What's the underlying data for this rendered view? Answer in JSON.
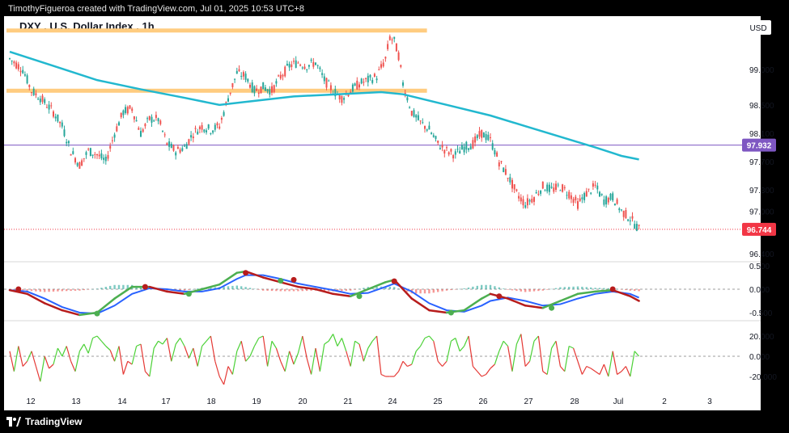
{
  "header": {
    "credit": "TimothyFigueroa created with TradingView.com, Jul 01, 2025 10:53 UTC+8"
  },
  "footer": {
    "brand": "TradingView"
  },
  "colors": {
    "up": "#26a69a",
    "down": "#ef5350",
    "ma": "#22b8cf",
    "resistance": "#ffcc80",
    "level_line": "#7e57c2",
    "last_price_box": "#f23645",
    "level_box": "#7e57c2",
    "osc_fast_up": "#4caf50",
    "osc_fast_down": "#b71c1c",
    "osc_slow": "#2962ff",
    "hist_up": "#26a69a",
    "hist_down": "#ef5350",
    "bottom_up": "#4cd137",
    "bottom_down": "#e53935"
  },
  "chart_data": [
    {
      "type": "candlestick",
      "title": "DXY . U.S. Dollar Index . 1h",
      "currency": "USD",
      "y_ticks": [
        99.0,
        98.5,
        98.1,
        97.7,
        97.3,
        97.0,
        96.4
      ],
      "y_tick_labels": [
        "99.000",
        "98.500",
        "98.100",
        "97.700",
        "97.300",
        "97.000",
        "96.400"
      ],
      "x_tick_labels": [
        "12",
        "13",
        "14",
        "17",
        "18",
        "19",
        "20",
        "21",
        "24",
        "25",
        "26",
        "27",
        "28",
        "Jul",
        "2",
        "3"
      ],
      "horizontal_level": {
        "value": 97.932,
        "label": "97.932"
      },
      "last_price": {
        "value": 96.744,
        "label": "96.744"
      },
      "resistance_zones": [
        {
          "price": 99.55,
          "from_day": "12",
          "to_day": "24"
        },
        {
          "price": 98.7,
          "from_day": "12",
          "to_day": "24"
        }
      ],
      "close_path": [
        [
          0,
          99.15
        ],
        [
          3,
          99.0
        ],
        [
          5,
          98.7
        ],
        [
          7,
          98.6
        ],
        [
          10,
          98.4
        ],
        [
          12,
          98.2
        ],
        [
          14,
          97.85
        ],
        [
          16,
          97.65
        ],
        [
          18,
          97.85
        ],
        [
          20,
          97.8
        ],
        [
          22,
          97.7
        ],
        [
          24,
          98.1
        ],
        [
          26,
          98.4
        ],
        [
          28,
          98.45
        ],
        [
          30,
          98.1
        ],
        [
          32,
          98.3
        ],
        [
          34,
          98.3
        ],
        [
          36,
          97.95
        ],
        [
          38,
          97.85
        ],
        [
          40,
          97.9
        ],
        [
          42,
          98.1
        ],
        [
          44,
          98.2
        ],
        [
          46,
          98.15
        ],
        [
          48,
          98.2
        ],
        [
          50,
          98.6
        ],
        [
          52,
          98.95
        ],
        [
          54,
          98.9
        ],
        [
          56,
          98.7
        ],
        [
          58,
          98.75
        ],
        [
          60,
          98.7
        ],
        [
          62,
          98.9
        ],
        [
          64,
          99.05
        ],
        [
          66,
          99.1
        ],
        [
          68,
          99.05
        ],
        [
          70,
          99.1
        ],
        [
          72,
          98.85
        ],
        [
          74,
          98.7
        ],
        [
          76,
          98.6
        ],
        [
          78,
          98.7
        ],
        [
          80,
          98.8
        ],
        [
          82,
          98.85
        ],
        [
          84,
          98.9
        ],
        [
          86,
          99.15
        ],
        [
          87,
          99.45
        ],
        [
          88,
          99.4
        ],
        [
          89,
          99.2
        ],
        [
          90,
          98.8
        ],
        [
          92,
          98.4
        ],
        [
          94,
          98.25
        ],
        [
          96,
          98.15
        ],
        [
          98,
          97.95
        ],
        [
          100,
          97.85
        ],
        [
          102,
          97.8
        ],
        [
          104,
          97.9
        ],
        [
          106,
          97.95
        ],
        [
          108,
          98.1
        ],
        [
          110,
          98.0
        ],
        [
          112,
          97.7
        ],
        [
          114,
          97.5
        ],
        [
          116,
          97.25
        ],
        [
          118,
          97.1
        ],
        [
          120,
          97.2
        ],
        [
          122,
          97.35
        ],
        [
          124,
          97.3
        ],
        [
          126,
          97.35
        ],
        [
          128,
          97.25
        ],
        [
          130,
          97.1
        ],
        [
          132,
          97.25
        ],
        [
          134,
          97.35
        ],
        [
          136,
          97.15
        ],
        [
          138,
          97.2
        ],
        [
          140,
          97.0
        ],
        [
          142,
          96.9
        ],
        [
          144,
          96.744
        ]
      ],
      "ma_line": [
        [
          0,
          99.25
        ],
        [
          10,
          99.05
        ],
        [
          20,
          98.85
        ],
        [
          30,
          98.72
        ],
        [
          40,
          98.6
        ],
        [
          48,
          98.5
        ],
        [
          55,
          98.55
        ],
        [
          65,
          98.62
        ],
        [
          75,
          98.65
        ],
        [
          85,
          98.68
        ],
        [
          90,
          98.65
        ],
        [
          100,
          98.5
        ],
        [
          110,
          98.35
        ],
        [
          118,
          98.2
        ],
        [
          126,
          98.05
        ],
        [
          134,
          97.9
        ],
        [
          140,
          97.78
        ],
        [
          144,
          97.73
        ]
      ]
    },
    {
      "type": "line",
      "name": "oscillator_middle",
      "y_tick_labels": [
        "0.500",
        "0.000",
        "-0.500"
      ],
      "y_ticks": [
        0.5,
        0.0,
        -0.5
      ],
      "fast": [
        [
          0,
          -0.02
        ],
        [
          4,
          -0.1
        ],
        [
          8,
          -0.3
        ],
        [
          12,
          -0.45
        ],
        [
          16,
          -0.55
        ],
        [
          20,
          -0.5
        ],
        [
          24,
          -0.2
        ],
        [
          28,
          0.05
        ],
        [
          32,
          0.05
        ],
        [
          36,
          -0.05
        ],
        [
          40,
          -0.1
        ],
        [
          44,
          0.0
        ],
        [
          48,
          0.1
        ],
        [
          52,
          0.35
        ],
        [
          54,
          0.38
        ],
        [
          58,
          0.25
        ],
        [
          62,
          0.15
        ],
        [
          66,
          0.05
        ],
        [
          70,
          0.0
        ],
        [
          74,
          -0.1
        ],
        [
          78,
          -0.15
        ],
        [
          82,
          0.0
        ],
        [
          86,
          0.15
        ],
        [
          88,
          0.2
        ],
        [
          92,
          -0.2
        ],
        [
          96,
          -0.45
        ],
        [
          100,
          -0.5
        ],
        [
          104,
          -0.45
        ],
        [
          108,
          -0.2
        ],
        [
          110,
          -0.1
        ],
        [
          114,
          -0.2
        ],
        [
          118,
          -0.35
        ],
        [
          122,
          -0.4
        ],
        [
          126,
          -0.25
        ],
        [
          130,
          -0.1
        ],
        [
          134,
          -0.05
        ],
        [
          138,
          -0.02
        ],
        [
          142,
          -0.15
        ],
        [
          144,
          -0.25
        ]
      ],
      "slow": [
        [
          0,
          -0.02
        ],
        [
          4,
          -0.05
        ],
        [
          8,
          -0.2
        ],
        [
          12,
          -0.38
        ],
        [
          16,
          -0.5
        ],
        [
          20,
          -0.52
        ],
        [
          24,
          -0.35
        ],
        [
          28,
          -0.1
        ],
        [
          32,
          0.02
        ],
        [
          36,
          0.0
        ],
        [
          40,
          -0.05
        ],
        [
          44,
          -0.05
        ],
        [
          48,
          0.02
        ],
        [
          52,
          0.22
        ],
        [
          54,
          0.3
        ],
        [
          58,
          0.3
        ],
        [
          62,
          0.22
        ],
        [
          66,
          0.12
        ],
        [
          70,
          0.05
        ],
        [
          74,
          -0.02
        ],
        [
          78,
          -0.1
        ],
        [
          82,
          -0.08
        ],
        [
          86,
          0.05
        ],
        [
          88,
          0.12
        ],
        [
          92,
          -0.05
        ],
        [
          96,
          -0.3
        ],
        [
          100,
          -0.45
        ],
        [
          104,
          -0.48
        ],
        [
          108,
          -0.35
        ],
        [
          110,
          -0.25
        ],
        [
          114,
          -0.18
        ],
        [
          118,
          -0.25
        ],
        [
          122,
          -0.35
        ],
        [
          126,
          -0.32
        ],
        [
          130,
          -0.2
        ],
        [
          134,
          -0.1
        ],
        [
          138,
          -0.05
        ],
        [
          142,
          -0.1
        ],
        [
          144,
          -0.18
        ]
      ],
      "cross_dots": [
        {
          "x": 2,
          "y": 0.0,
          "dir": "down"
        },
        {
          "x": 20,
          "y": -0.52,
          "dir": "up"
        },
        {
          "x": 31,
          "y": 0.05,
          "dir": "down"
        },
        {
          "x": 41,
          "y": -0.1,
          "dir": "up"
        },
        {
          "x": 54,
          "y": 0.35,
          "dir": "down"
        },
        {
          "x": 62,
          "y": 0.18,
          "dir": "up"
        },
        {
          "x": 65,
          "y": 0.2,
          "dir": "down"
        },
        {
          "x": 80,
          "y": -0.15,
          "dir": "up"
        },
        {
          "x": 88,
          "y": 0.17,
          "dir": "down"
        },
        {
          "x": 101,
          "y": -0.5,
          "dir": "up"
        },
        {
          "x": 112,
          "y": -0.15,
          "dir": "down"
        },
        {
          "x": 124,
          "y": -0.4,
          "dir": "up"
        },
        {
          "x": 138,
          "y": 0.0,
          "dir": "down"
        }
      ]
    },
    {
      "type": "line",
      "name": "oscillator_bottom",
      "y_tick_labels": [
        "20.000",
        "0.000",
        "-20.000"
      ],
      "y_ticks": [
        20,
        0,
        -20
      ],
      "values": [
        5,
        -15,
        10,
        -10,
        -5,
        5,
        -10,
        -25,
        0,
        -12,
        -8,
        8,
        0,
        10,
        -5,
        -15,
        5,
        12,
        3,
        18,
        20,
        15,
        10,
        6,
        -5,
        10,
        -18,
        -5,
        -8,
        10,
        12,
        -15,
        -20,
        8,
        15,
        12,
        18,
        -5,
        12,
        18,
        10,
        -2,
        8,
        -10,
        10,
        15,
        20,
        -5,
        -20,
        -28,
        -10,
        -18,
        5,
        15,
        -5,
        0,
        10,
        18,
        20,
        -10,
        15,
        8,
        -5,
        -15,
        5,
        -8,
        3,
        20,
        -2,
        -18,
        8,
        -15,
        12,
        15,
        22,
        10,
        18,
        5,
        -10,
        15,
        12,
        -5,
        8,
        15,
        20,
        -18,
        -20,
        -20,
        -20,
        -15,
        -5,
        -10,
        -8,
        5,
        10,
        18,
        20,
        15,
        -5,
        -10,
        -5,
        15,
        18,
        5,
        10,
        20,
        -10,
        -15,
        -20,
        -18,
        -12,
        -8,
        5,
        15,
        10,
        -15,
        12,
        22,
        -10,
        -5,
        15,
        20,
        -15,
        -18,
        8,
        15,
        -10,
        -15,
        10,
        8,
        -5,
        -18,
        -10,
        -12,
        -15,
        -18,
        -8,
        -20,
        5,
        -18,
        -15,
        -10,
        -20,
        5,
        0
      ]
    }
  ]
}
